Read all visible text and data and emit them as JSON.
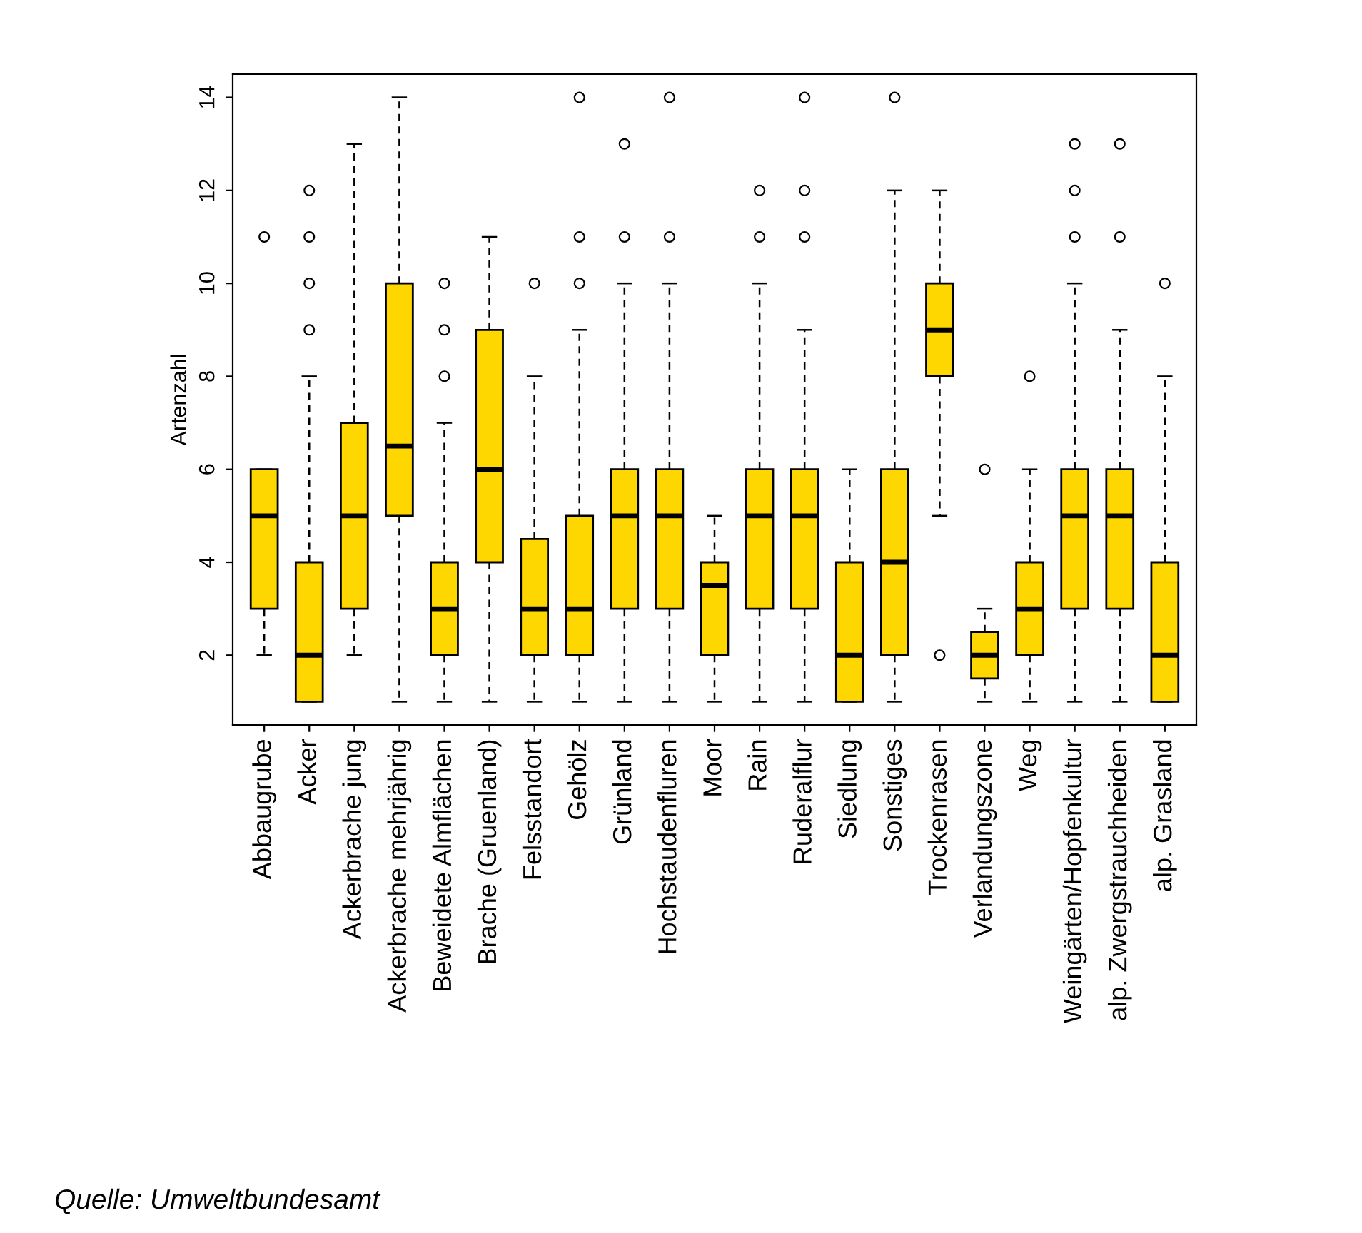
{
  "chart_data": {
    "type": "box",
    "ylabel": "Artenzahl",
    "color": "#ffd700",
    "categories": [
      "Abbaugrube",
      "Acker",
      "Ackerbrache jung",
      "Ackerbrache mehrjährig",
      "Beweidete Almflächen",
      "Brache (Gruenland)",
      "Felsstandort",
      "Gehölz",
      "Grünland",
      "Hochstaudenfluren",
      "Moor",
      "Rain",
      "Ruderalflur",
      "Siedlung",
      "Sonstiges",
      "Trockenrasen",
      "Verlandungszone",
      "Weg",
      "Weingärten/Hopfenkultur",
      "alp. Zwergstrauchheiden",
      "alp. Grasland"
    ],
    "boxes": [
      {
        "low": 2,
        "q1": 3,
        "median": 5,
        "q3": 6,
        "high": 6,
        "outliers": [
          11
        ]
      },
      {
        "low": 1,
        "q1": 1,
        "median": 2,
        "q3": 4,
        "high": 8,
        "outliers": [
          9,
          10,
          11,
          12
        ]
      },
      {
        "low": 2,
        "q1": 3,
        "median": 5,
        "q3": 7,
        "high": 13
      },
      {
        "low": 1,
        "q1": 5,
        "median": 6.5,
        "q3": 10,
        "high": 14
      },
      {
        "low": 1,
        "q1": 2,
        "median": 3,
        "q3": 4,
        "high": 7,
        "outliers": [
          8,
          9,
          10
        ]
      },
      {
        "low": 1,
        "q1": 4,
        "median": 6,
        "q3": 9,
        "high": 11
      },
      {
        "low": 1,
        "q1": 2,
        "median": 3,
        "q3": 4.5,
        "high": 8,
        "outliers": [
          10
        ]
      },
      {
        "low": 1,
        "q1": 2,
        "median": 3,
        "q3": 5,
        "high": 9,
        "outliers": [
          10,
          11,
          14
        ]
      },
      {
        "low": 1,
        "q1": 3,
        "median": 5,
        "q3": 6,
        "high": 10,
        "outliers": [
          11,
          13
        ]
      },
      {
        "low": 1,
        "q1": 3,
        "median": 5,
        "q3": 6,
        "high": 10,
        "outliers": [
          11,
          14
        ]
      },
      {
        "low": 1,
        "q1": 2,
        "median": 3.5,
        "q3": 4,
        "high": 5
      },
      {
        "low": 1,
        "q1": 3,
        "median": 5,
        "q3": 6,
        "high": 10,
        "outliers": [
          11,
          12
        ]
      },
      {
        "low": 1,
        "q1": 3,
        "median": 5,
        "q3": 6,
        "high": 9,
        "outliers": [
          11,
          12,
          14
        ]
      },
      {
        "low": 1,
        "q1": 1,
        "median": 2,
        "q3": 4,
        "high": 6
      },
      {
        "low": 1,
        "q1": 2,
        "median": 4,
        "q3": 6,
        "high": 12,
        "outliers": [
          14
        ]
      },
      {
        "low": 5,
        "q1": 8,
        "median": 9,
        "q3": 10,
        "high": 12,
        "outliers": [
          2
        ]
      },
      {
        "low": 1,
        "q1": 1.5,
        "median": 2,
        "q3": 2.5,
        "high": 3,
        "outliers": [
          6
        ]
      },
      {
        "low": 1,
        "q1": 2,
        "median": 3,
        "q3": 4,
        "high": 6,
        "outliers": [
          8
        ]
      },
      {
        "low": 1,
        "q1": 3,
        "median": 5,
        "q3": 6,
        "high": 10,
        "outliers": [
          11,
          12,
          13
        ]
      },
      {
        "low": 1,
        "q1": 3,
        "median": 5,
        "q3": 6,
        "high": 9,
        "outliers": [
          11,
          13
        ]
      },
      {
        "low": 1,
        "q1": 1,
        "median": 2,
        "q3": 4,
        "high": 8,
        "outliers": [
          10
        ]
      }
    ],
    "ylim": [
      0.5,
      14.5
    ],
    "yticks": [
      2,
      4,
      6,
      8,
      10,
      12,
      14
    ],
    "grid": false,
    "annotations": [
      "Quelle: Umweltbundesamt"
    ]
  }
}
